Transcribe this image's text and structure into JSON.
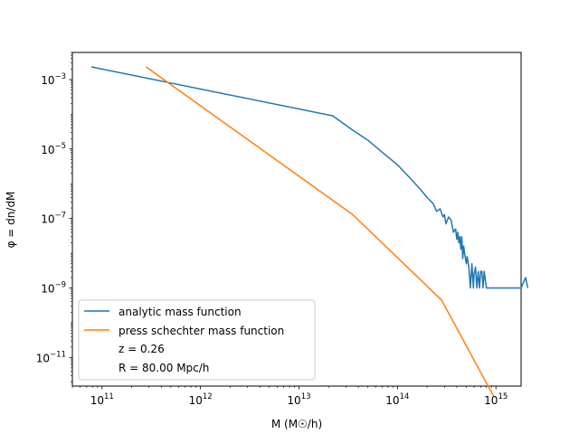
{
  "chart_data": {
    "type": "line",
    "xscale": "log",
    "yscale": "log",
    "xlabel": "M (M☉/h)",
    "ylabel": "φ = dn/dM",
    "xlim": [
      50000000000.0,
      1800000000000000.0
    ],
    "ylim": [
      1.5e-12,
      0.006
    ],
    "xticks": [
      {
        "value": 100000000000.0,
        "base": "10",
        "exp": "11"
      },
      {
        "value": 1000000000000.0,
        "base": "10",
        "exp": "12"
      },
      {
        "value": 10000000000000.0,
        "base": "10",
        "exp": "13"
      },
      {
        "value": 100000000000000.0,
        "base": "10",
        "exp": "14"
      },
      {
        "value": 1000000000000000.0,
        "base": "10",
        "exp": "15"
      }
    ],
    "yticks": [
      {
        "value": 1e-11,
        "base": "10",
        "exp": "−11"
      },
      {
        "value": 1e-09,
        "base": "10",
        "exp": "−9"
      },
      {
        "value": 1e-07,
        "base": "10",
        "exp": "−7"
      },
      {
        "value": 1e-05,
        "base": "10",
        "exp": "−5"
      },
      {
        "value": 0.001,
        "base": "10",
        "exp": "−3"
      }
    ],
    "series": [
      {
        "name": "analytic mass function",
        "color": "#1f77b4",
        "points": [
          [
            78000000000.0,
            0.0023
          ],
          [
            22000000000000.0,
            9e-05
          ],
          [
            35000000000000.0,
            3.5e-05
          ],
          [
            50000000000000.0,
            1.8e-05
          ],
          [
            70000000000000.0,
            8e-06
          ],
          [
            100000000000000.0,
            3.5e-06
          ],
          [
            130000000000000.0,
            1.6e-06
          ],
          [
            170000000000000.0,
            7e-07
          ],
          [
            200000000000000.0,
            4e-07
          ],
          [
            230000000000000.0,
            2.7e-07
          ],
          [
            250000000000000.0,
            1.6e-07
          ],
          [
            270000000000000.0,
            1.9e-07
          ],
          [
            290000000000000.0,
            1.1e-07
          ],
          [
            300000000000000.0,
            1.3e-07
          ],
          [
            310000000000000.0,
            7e-08
          ],
          [
            330000000000000.0,
            1.1e-07
          ],
          [
            350000000000000.0,
            9e-08
          ],
          [
            370000000000000.0,
            4e-08
          ],
          [
            390000000000000.0,
            5e-08
          ],
          [
            400000000000000.0,
            2.5e-08
          ],
          [
            410000000000000.0,
            4e-08
          ],
          [
            420000000000000.0,
            2e-08
          ],
          [
            430000000000000.0,
            3e-08
          ],
          [
            440000000000000.0,
            1.3e-08
          ],
          [
            450000000000000.0,
            3e-08
          ],
          [
            460000000000000.0,
            7e-09
          ],
          [
            470000000000000.0,
            1.6e-08
          ],
          [
            480000000000000.0,
            1e-08
          ],
          [
            500000000000000.0,
            5e-09
          ],
          [
            510000000000000.0,
            8e-09
          ],
          [
            530000000000000.0,
            4e-09
          ],
          [
            550000000000000.0,
            1e-09
          ],
          [
            570000000000000.0,
            5e-09
          ],
          [
            590000000000000.0,
            1e-09
          ],
          [
            600000000000000.0,
            2.5e-09
          ],
          [
            620000000000000.0,
            4e-09
          ],
          [
            640000000000000.0,
            1e-09
          ],
          [
            660000000000000.0,
            3e-09
          ],
          [
            680000000000000.0,
            1e-09
          ],
          [
            700000000000000.0,
            3e-09
          ],
          [
            720000000000000.0,
            3e-09
          ],
          [
            740000000000000.0,
            1e-09
          ],
          [
            760000000000000.0,
            3e-09
          ],
          [
            800000000000000.0,
            1e-09
          ],
          [
            1000000000000000.0,
            1e-09
          ],
          [
            1200000000000000.0,
            1e-09
          ],
          [
            1500000000000000.0,
            1e-09
          ],
          [
            1800000000000000.0,
            1e-09
          ],
          [
            2000000000000000.0,
            2e-09
          ],
          [
            2100000000000000.0,
            1e-09
          ]
        ]
      },
      {
        "name": "press schechter mass function",
        "color": "#ff7f0e",
        "points": [
          [
            280000000000.0,
            0.0023
          ],
          [
            35000000000000.0,
            1.3e-07
          ],
          [
            280000000000000.0,
            4.5e-10
          ],
          [
            950000000000000.0,
            7.5e-13
          ]
        ]
      }
    ],
    "legend": {
      "position": "lower-left",
      "entries": [
        {
          "label": "analytic mass function",
          "color": "#1f77b4"
        },
        {
          "label": "press schechter mass function",
          "color": "#ff7f0e"
        },
        {
          "label": "z = 0.26",
          "color": null
        },
        {
          "label": "R = 80.00 Mpc/h",
          "color": null
        }
      ]
    },
    "grid": false
  }
}
